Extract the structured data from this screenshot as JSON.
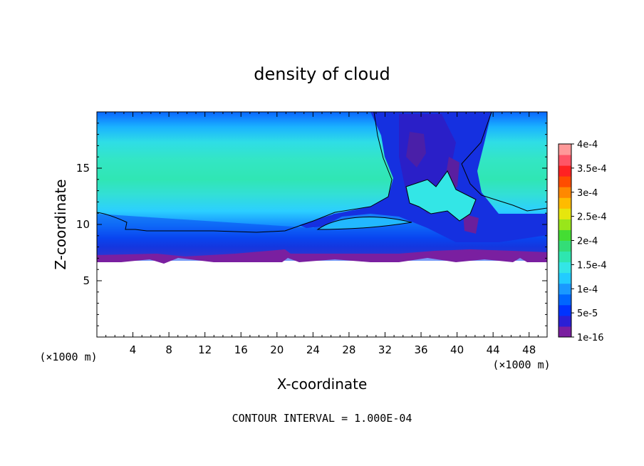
{
  "chart_data": {
    "type": "heatmap",
    "title": "density of cloud",
    "xlabel": "X-coordinate",
    "ylabel": "Z-coordinate",
    "x_unit": "(×1000 m)",
    "y_unit": "(×1000 m)",
    "xlim": [
      0,
      50
    ],
    "ylim": [
      0,
      20
    ],
    "x_ticks": [
      4,
      8,
      12,
      16,
      20,
      24,
      28,
      32,
      36,
      40,
      44,
      48
    ],
    "y_ticks": [
      5,
      10,
      15
    ],
    "colorbar": {
      "labels": [
        "1e-16",
        "5e-5",
        "1e-4",
        "1.5e-4",
        "2e-4",
        "2.5e-4",
        "3e-4",
        "3.5e-4",
        "4e-4"
      ],
      "colors": [
        "#7a1fa0",
        "#2b1fd6",
        "#0033ff",
        "#0066ff",
        "#1a99ff",
        "#22ccff",
        "#33e6e6",
        "#2ee6b0",
        "#33dd77",
        "#44dd33",
        "#99e61a",
        "#e6e60d",
        "#ffbb00",
        "#ff8800",
        "#ff4d00",
        "#ff2222",
        "#ff5566",
        "#ff9999"
      ]
    },
    "footer": "CONTOUR INTERVAL = 1.000E-04"
  }
}
